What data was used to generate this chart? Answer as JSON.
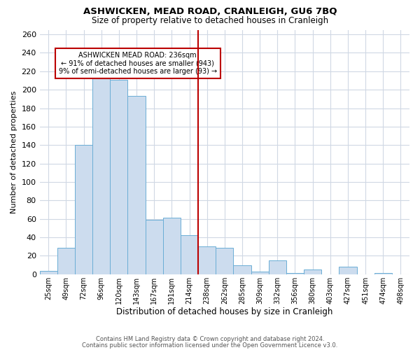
{
  "title": "ASHWICKEN, MEAD ROAD, CRANLEIGH, GU6 7BQ",
  "subtitle": "Size of property relative to detached houses in Cranleigh",
  "xlabel": "Distribution of detached houses by size in Cranleigh",
  "ylabel": "Number of detached properties",
  "bar_labels": [
    "25sqm",
    "49sqm",
    "72sqm",
    "96sqm",
    "120sqm",
    "143sqm",
    "167sqm",
    "191sqm",
    "214sqm",
    "238sqm",
    "262sqm",
    "285sqm",
    "309sqm",
    "332sqm",
    "356sqm",
    "380sqm",
    "403sqm",
    "427sqm",
    "451sqm",
    "474sqm",
    "498sqm"
  ],
  "bar_heights": [
    4,
    29,
    140,
    215,
    211,
    193,
    59,
    61,
    42,
    30,
    29,
    10,
    3,
    15,
    1,
    5,
    0,
    8,
    0,
    1,
    0
  ],
  "bar_color": "#ccdcee",
  "bar_edge_color": "#6baed6",
  "vline_color": "#bb0000",
  "vline_x_index": 8.5,
  "annotation_title": "ASHWICKEN MEAD ROAD: 236sqm",
  "annotation_line1": "← 91% of detached houses are smaller (943)",
  "annotation_line2": "9% of semi-detached houses are larger (93) →",
  "ylim": [
    0,
    265
  ],
  "yticks": [
    0,
    20,
    40,
    60,
    80,
    100,
    120,
    140,
    160,
    180,
    200,
    220,
    240,
    260
  ],
  "footnote1": "Contains HM Land Registry data © Crown copyright and database right 2024.",
  "footnote2": "Contains public sector information licensed under the Open Government Licence v3.0.",
  "background_color": "#ffffff",
  "grid_color": "#d0d8e4"
}
